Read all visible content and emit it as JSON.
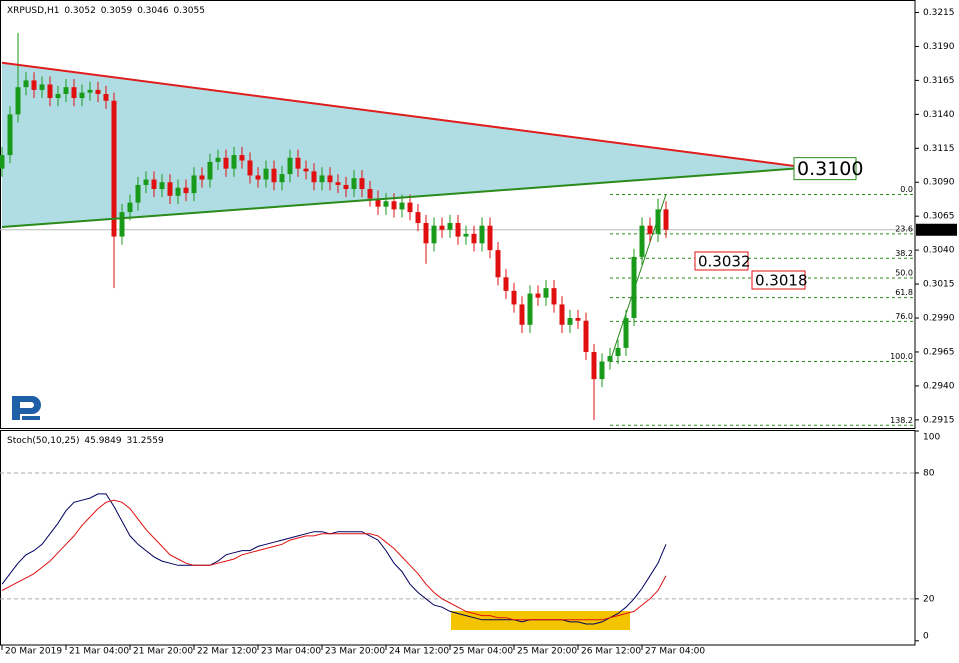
{
  "chart_data": [
    {
      "type": "candlestick",
      "title": "XRPUSD,H1",
      "header_values": [
        0.3052,
        0.3059,
        0.3046,
        0.3055
      ],
      "x": [
        0,
        2,
        4,
        6,
        8,
        10,
        12,
        14,
        16,
        18,
        20,
        22,
        24,
        26,
        28,
        30,
        32,
        34,
        36,
        38,
        40,
        42,
        44,
        46,
        48,
        50,
        52,
        54,
        56,
        58,
        60,
        62,
        64,
        66,
        68,
        70,
        72,
        74,
        76,
        78,
        80,
        82,
        84,
        86,
        88,
        90,
        92,
        94,
        96,
        98,
        100,
        102,
        104,
        106,
        108,
        110,
        112,
        114,
        116,
        118,
        120,
        122,
        124,
        126,
        128,
        130,
        132,
        134,
        136,
        138,
        140,
        142,
        144,
        146,
        148,
        150,
        152,
        154,
        156,
        158,
        160,
        162,
        164,
        166
      ],
      "open": [
        0.31,
        0.311,
        0.314,
        0.316,
        0.3165,
        0.3158,
        0.3162,
        0.3152,
        0.3155,
        0.316,
        0.3152,
        0.3156,
        0.3158,
        0.3155,
        0.315,
        0.305,
        0.3068,
        0.3075,
        0.3088,
        0.3092,
        0.3085,
        0.309,
        0.308,
        0.3086,
        0.3082,
        0.3095,
        0.3092,
        0.3105,
        0.3108,
        0.31,
        0.311,
        0.3106,
        0.3095,
        0.3092,
        0.31,
        0.309,
        0.3096,
        0.3108,
        0.31,
        0.3098,
        0.309,
        0.3095,
        0.309,
        0.3088,
        0.3085,
        0.3093,
        0.3085,
        0.3078,
        0.3072,
        0.3076,
        0.307,
        0.3075,
        0.3068,
        0.306,
        0.3045,
        0.3058,
        0.3055,
        0.306,
        0.305,
        0.3052,
        0.3045,
        0.3058,
        0.304,
        0.302,
        0.301,
        0.3,
        0.2985,
        0.3008,
        0.3005,
        0.3012,
        0.3,
        0.2985,
        0.299,
        0.2988,
        0.2965,
        0.2945,
        0.2958,
        0.2962,
        0.2968,
        0.299,
        0.3035,
        0.3058,
        0.3052,
        0.307
      ],
      "high": [
        0.3116,
        0.3146,
        0.32,
        0.3171,
        0.3171,
        0.3168,
        0.3168,
        0.3161,
        0.3166,
        0.3166,
        0.3162,
        0.3164,
        0.3164,
        0.3161,
        0.3156,
        0.3074,
        0.3081,
        0.3094,
        0.3098,
        0.3098,
        0.3096,
        0.3096,
        0.3092,
        0.3092,
        0.3101,
        0.3101,
        0.3111,
        0.3114,
        0.3114,
        0.3116,
        0.3116,
        0.3112,
        0.3101,
        0.3106,
        0.3106,
        0.3102,
        0.3114,
        0.3114,
        0.3106,
        0.3104,
        0.3101,
        0.3101,
        0.3096,
        0.3094,
        0.3099,
        0.3099,
        0.3091,
        0.3084,
        0.3082,
        0.3082,
        0.3081,
        0.3081,
        0.3074,
        0.3066,
        0.3064,
        0.3064,
        0.3066,
        0.3066,
        0.3058,
        0.3058,
        0.3064,
        0.3064,
        0.3046,
        0.3026,
        0.3016,
        0.3006,
        0.3014,
        0.3014,
        0.3018,
        0.3018,
        0.3006,
        0.2996,
        0.2996,
        0.2994,
        0.2971,
        0.2964,
        0.2968,
        0.2974,
        0.2996,
        0.3041,
        0.3064,
        0.3064,
        0.3078,
        0.3076
      ],
      "low": [
        0.3094,
        0.3104,
        0.3134,
        0.3154,
        0.3152,
        0.3152,
        0.3146,
        0.3146,
        0.3149,
        0.3146,
        0.3146,
        0.315,
        0.3149,
        0.3144,
        0.3012,
        0.3044,
        0.3062,
        0.3069,
        0.3082,
        0.3079,
        0.3079,
        0.3074,
        0.3074,
        0.3076,
        0.3076,
        0.3086,
        0.3086,
        0.3099,
        0.3094,
        0.3094,
        0.31,
        0.3089,
        0.3086,
        0.3086,
        0.3084,
        0.3084,
        0.309,
        0.3094,
        0.3092,
        0.3084,
        0.3084,
        0.3084,
        0.3082,
        0.3079,
        0.3079,
        0.3079,
        0.3072,
        0.3066,
        0.3066,
        0.3064,
        0.3064,
        0.3062,
        0.3054,
        0.303,
        0.3039,
        0.3049,
        0.3049,
        0.3044,
        0.3044,
        0.3039,
        0.3039,
        0.3034,
        0.3014,
        0.3004,
        0.2994,
        0.2979,
        0.2979,
        0.2999,
        0.2999,
        0.2994,
        0.2979,
        0.2979,
        0.2982,
        0.2959,
        0.2915,
        0.2939,
        0.2952,
        0.2956,
        0.2962,
        0.2984,
        0.3029,
        0.3046,
        0.3046,
        0.3049
      ],
      "close": [
        0.311,
        0.314,
        0.316,
        0.3165,
        0.3158,
        0.3162,
        0.3152,
        0.3155,
        0.316,
        0.3152,
        0.3156,
        0.3158,
        0.3155,
        0.315,
        0.305,
        0.3068,
        0.3075,
        0.3088,
        0.3092,
        0.3085,
        0.309,
        0.308,
        0.3086,
        0.3082,
        0.3095,
        0.3092,
        0.3105,
        0.3108,
        0.31,
        0.311,
        0.3106,
        0.3095,
        0.3092,
        0.31,
        0.309,
        0.3096,
        0.3108,
        0.31,
        0.3098,
        0.309,
        0.3095,
        0.309,
        0.3088,
        0.3085,
        0.3093,
        0.3085,
        0.3078,
        0.3072,
        0.3076,
        0.307,
        0.3075,
        0.3068,
        0.306,
        0.3045,
        0.3058,
        0.3055,
        0.306,
        0.305,
        0.3052,
        0.3045,
        0.3058,
        0.304,
        0.302,
        0.301,
        0.3,
        0.2985,
        0.3008,
        0.3005,
        0.3012,
        0.3,
        0.2985,
        0.299,
        0.2988,
        0.2965,
        0.2945,
        0.2958,
        0.2962,
        0.2968,
        0.299,
        0.3035,
        0.3058,
        0.3052,
        0.307,
        0.3055
      ],
      "up_color": "#1a9a1a",
      "down_color": "#e01010",
      "xlim": [
        -0.5,
        228.25
      ],
      "ylim": [
        0.2909,
        0.3222
      ],
      "yticks": [
        0.3215,
        {
          "value": 0.319,
          "label": "0.3190"
        },
        0.3165,
        {
          "value": 0.314,
          "label": "0.3140"
        },
        0.3115,
        {
          "value": 0.309,
          "label": "0.3090"
        },
        0.3065,
        {
          "value": 0.304,
          "label": "0.3040"
        },
        0.3015,
        {
          "value": 0.299,
          "label": "0.2990"
        },
        0.2965,
        {
          "value": 0.294,
          "label": "0.2940"
        },
        0.2915
      ],
      "last_price": 0.3055,
      "trendlines": [
        {
          "color": "#e01c1c",
          "x": [
            0,
            198
          ],
          "y": [
            0.3178,
            0.3102
          ]
        },
        {
          "color": "#2a8a1a",
          "x": [
            0,
            198
          ],
          "y": [
            0.3057,
            0.31
          ]
        }
      ],
      "triangle_fill": "#b0dde4",
      "triangle_label": {
        "value": 0.31,
        "label": "0.3100"
      },
      "price_labels": [
        0.3032,
        0.3018
      ],
      "fibonacci": {
        "color": "#2a8a1a",
        "x_start": 152,
        "x_end": 166,
        "high": 0.3081,
        "low": 0.2958,
        "levels": [
          {
            "value": 0,
            "label": "0.0"
          },
          23.6,
          38.2,
          {
            "value": 50,
            "label": "50.0"
          },
          61.8,
          {
            "value": 76,
            "label": "76.0"
          },
          {
            "value": 100,
            "label": "100.0"
          },
          138.2
        ]
      }
    },
    {
      "type": "line",
      "title": "Stoch(50,10,25)",
      "header_values": [
        45.9849,
        31.2559
      ],
      "x": [
        0,
        2,
        4,
        6,
        8,
        10,
        12,
        14,
        16,
        18,
        20,
        22,
        24,
        26,
        28,
        30,
        32,
        34,
        36,
        38,
        40,
        42,
        44,
        46,
        48,
        50,
        52,
        54,
        56,
        58,
        60,
        62,
        64,
        66,
        68,
        70,
        72,
        74,
        76,
        78,
        80,
        82,
        84,
        86,
        88,
        90,
        92,
        94,
        96,
        98,
        100,
        102,
        104,
        106,
        108,
        110,
        112,
        114,
        116,
        118,
        120,
        122,
        124,
        126,
        128,
        130,
        132,
        134,
        136,
        138,
        140,
        142,
        144,
        146,
        148,
        150,
        152,
        154,
        156,
        158,
        160,
        162,
        164,
        166
      ],
      "series": [
        {
          "color": "#000060",
          "values": [
            27,
            32,
            37,
            41,
            43,
            46,
            51,
            56,
            62,
            66,
            67,
            68,
            70,
            70,
            64,
            57,
            50,
            46,
            43,
            40,
            38,
            37,
            36,
            36,
            36,
            36,
            36,
            38,
            41,
            42,
            43,
            43,
            45,
            46,
            47,
            48,
            49,
            50,
            51,
            52,
            52,
            51,
            52,
            52,
            52,
            52,
            50,
            48,
            43,
            37,
            33,
            27,
            23,
            20,
            17,
            16,
            14,
            13,
            12,
            11,
            10,
            10,
            10,
            10,
            10,
            9,
            10,
            10,
            10,
            10,
            10,
            9,
            9,
            8,
            8,
            9,
            11,
            13,
            16,
            20,
            25,
            31,
            37,
            46
          ]
        },
        {
          "color": "#e01010",
          "values": [
            24,
            26,
            28,
            30,
            32,
            35,
            38,
            42,
            46,
            50,
            55,
            59,
            63,
            66,
            67,
            66,
            63,
            58,
            53,
            49,
            45,
            41,
            39,
            37,
            36,
            36,
            36,
            37,
            38,
            39,
            41,
            42,
            43,
            44,
            45,
            46,
            48,
            49,
            50,
            50,
            51,
            51,
            51,
            51,
            51,
            51,
            51,
            50,
            47,
            44,
            40,
            36,
            32,
            27,
            23,
            20,
            18,
            16,
            14,
            13,
            12,
            12,
            11,
            11,
            10,
            10,
            10,
            10,
            10,
            10,
            10,
            10,
            10,
            10,
            10,
            10,
            11,
            12,
            13,
            14,
            17,
            20,
            24,
            31
          ]
        }
      ],
      "xlim": [
        -0.5,
        228.25
      ],
      "ylim": [
        -2,
        100
      ],
      "yticks": [
        0,
        20,
        80,
        100
      ],
      "levels": [
        20,
        80
      ],
      "xticks": [
        {
          "value": 0,
          "label": "20 Mar 2019"
        },
        {
          "value": 16,
          "label": "21 Mar 04:00"
        },
        {
          "value": 32,
          "label": "21 Mar 20:00"
        },
        {
          "value": 48,
          "label": "22 Mar 12:00"
        },
        {
          "value": 64,
          "label": "23 Mar 04:00"
        },
        {
          "value": 80,
          "label": "23 Mar 20:00"
        },
        {
          "value": 96,
          "label": "24 Mar 12:00"
        },
        {
          "value": 112,
          "label": "25 Mar 04:00"
        },
        {
          "value": 128,
          "label": "25 Mar 20:00"
        },
        {
          "value": 144,
          "label": "26 Mar 12:00"
        },
        {
          "value": 160,
          "label": "27 Mar 04:00"
        }
      ]
    }
  ]
}
